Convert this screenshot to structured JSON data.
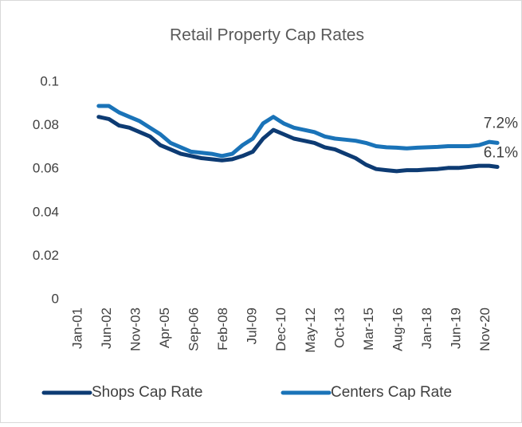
{
  "chart_data": {
    "type": "line",
    "title": "Retail Property Cap Rates",
    "x": [
      2002.0,
      2002.5,
      2003.0,
      2003.5,
      2004.0,
      2004.5,
      2005.0,
      2005.5,
      2006.0,
      2006.5,
      2007.0,
      2007.5,
      2008.0,
      2008.5,
      2009.0,
      2009.5,
      2010.0,
      2010.5,
      2011.0,
      2011.5,
      2012.0,
      2012.5,
      2013.0,
      2013.5,
      2014.0,
      2014.5,
      2015.0,
      2015.5,
      2016.0,
      2016.5,
      2017.0,
      2017.5,
      2018.0,
      2018.5,
      2019.0,
      2019.5,
      2020.0,
      2020.5,
      2021.0,
      2021.4
    ],
    "series": [
      {
        "name": "Shops Cap Rate",
        "color": "#0d3b73",
        "values": [
          0.084,
          0.083,
          0.08,
          0.079,
          0.077,
          0.075,
          0.071,
          0.069,
          0.067,
          0.066,
          0.065,
          0.0645,
          0.064,
          0.0645,
          0.066,
          0.068,
          0.074,
          0.078,
          0.076,
          0.074,
          0.073,
          0.072,
          0.07,
          0.069,
          0.067,
          0.065,
          0.062,
          0.06,
          0.0595,
          0.059,
          0.0595,
          0.0595,
          0.0598,
          0.06,
          0.0605,
          0.0605,
          0.061,
          0.0615,
          0.0615,
          0.061
        ]
      },
      {
        "name": "Centers Cap Rate",
        "color": "#1a73b8",
        "values": [
          0.089,
          0.089,
          0.086,
          0.084,
          0.082,
          0.079,
          0.076,
          0.072,
          0.07,
          0.068,
          0.0675,
          0.067,
          0.066,
          0.067,
          0.071,
          0.074,
          0.081,
          0.084,
          0.081,
          0.079,
          0.078,
          0.077,
          0.075,
          0.074,
          0.0735,
          0.073,
          0.072,
          0.0705,
          0.07,
          0.0698,
          0.0695,
          0.0698,
          0.07,
          0.0702,
          0.0705,
          0.0705,
          0.0705,
          0.071,
          0.0725,
          0.072
        ]
      }
    ],
    "annotations": [
      {
        "text": "6.1%",
        "series": 0
      },
      {
        "text": "7.2%",
        "series": 1
      }
    ],
    "xlim": [
      2000.42,
      2021.55
    ],
    "xticks": [
      {
        "value": 2001.0,
        "label": "Jan-01"
      },
      {
        "value": 2002.417,
        "label": "Jun-02"
      },
      {
        "value": 2003.833,
        "label": "Nov-03"
      },
      {
        "value": 2005.25,
        "label": "Apr-05"
      },
      {
        "value": 2006.667,
        "label": "Sep-06"
      },
      {
        "value": 2008.083,
        "label": "Feb-08"
      },
      {
        "value": 2009.5,
        "label": "Jul-09"
      },
      {
        "value": 2010.917,
        "label": "Dec-10"
      },
      {
        "value": 2012.333,
        "label": "May-12"
      },
      {
        "value": 2013.75,
        "label": "Oct-13"
      },
      {
        "value": 2015.167,
        "label": "Mar-15"
      },
      {
        "value": 2016.583,
        "label": "Aug-16"
      },
      {
        "value": 2018.0,
        "label": "Jan-18"
      },
      {
        "value": 2019.417,
        "label": "Jun-19"
      },
      {
        "value": 2020.833,
        "label": "Nov-20"
      }
    ],
    "ylim": [
      0,
      0.1
    ],
    "yticks": [
      0,
      0.02,
      0.04,
      0.06,
      0.08,
      0.1
    ],
    "grid": false,
    "legend": "bottom"
  }
}
